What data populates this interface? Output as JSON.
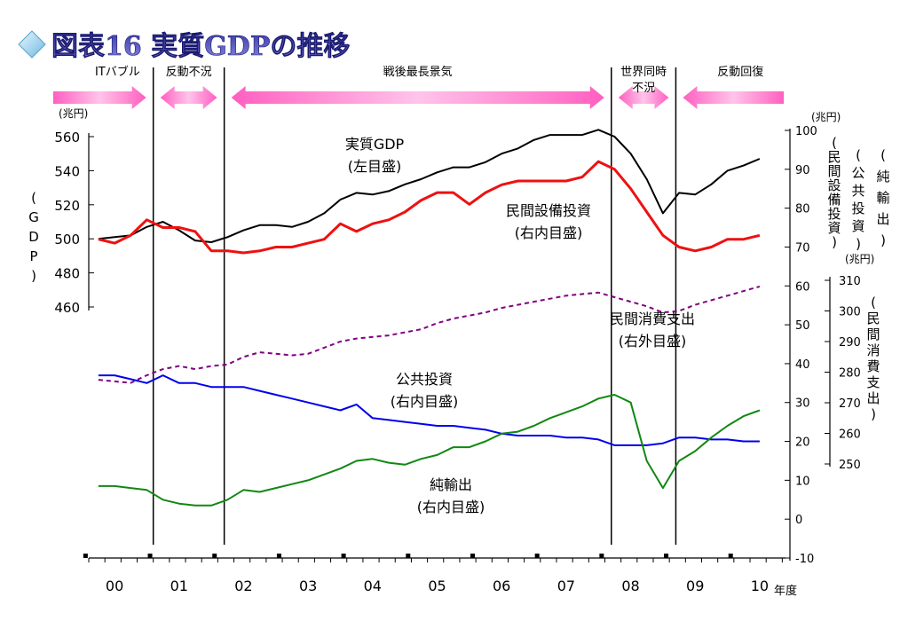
{
  "title": "図表16 実質GDPの推移",
  "x_unit": "年度",
  "left_axis": {
    "unit": "(兆円)",
    "label": [
      "(",
      "G",
      "D",
      "P",
      ")"
    ],
    "ticks": [
      460,
      480,
      500,
      520,
      540,
      560
    ]
  },
  "right_inner_axis": {
    "unit": "(兆円)",
    "ticks": [
      -10,
      0,
      10,
      20,
      30,
      40,
      50,
      60,
      70,
      80,
      90,
      100
    ]
  },
  "right_outer_axis": {
    "unit": "(兆円)",
    "ticks": [
      250,
      260,
      270,
      280,
      290,
      300,
      310
    ]
  },
  "vertical_axis_labels": [
    {
      "name": "net-exports-axis-label",
      "chars": [
        "(",
        "純",
        "輸",
        "出",
        ")"
      ]
    },
    {
      "name": "public-investment-axis-label",
      "chars": [
        "(",
        "公",
        "共",
        "投",
        "資",
        ")"
      ]
    },
    {
      "name": "capex-axis-label",
      "chars": [
        "(",
        "民",
        "間",
        "設",
        "備",
        "投",
        "資",
        ")"
      ]
    },
    {
      "name": "consumption-axis-label",
      "chars": [
        "(",
        "民",
        "間",
        "消",
        "費",
        "支",
        "出",
        ")"
      ]
    }
  ],
  "phases": [
    {
      "label": "ITバブル",
      "from": 2000.0,
      "to": 2000.6,
      "arrow": "right"
    },
    {
      "label": "反動不況",
      "from": 2000.6,
      "to": 2001.7,
      "arrow": "both"
    },
    {
      "label": "戦後最長景気",
      "from": 2001.7,
      "to": 2007.7,
      "arrow": "both"
    },
    {
      "label": "世界同時\n不況",
      "from": 2007.7,
      "to": 2008.7,
      "arrow": "both"
    },
    {
      "label": "反動回復",
      "from": 2008.7,
      "to": 2010.4,
      "arrow": "left"
    }
  ],
  "phase_boundaries": [
    2000.6,
    2001.7,
    2007.7,
    2008.7
  ],
  "series_labels": [
    {
      "text": "実質GDP",
      "sub": "(左目盛)"
    },
    {
      "text": "民間設備投資",
      "sub": "(右内目盛)"
    },
    {
      "text": "民間消費支出",
      "sub": "(右外目盛)"
    },
    {
      "text": "公共投資",
      "sub": "(右内目盛)"
    },
    {
      "text": "純輸出",
      "sub": "(右内目盛)"
    }
  ],
  "chart_data": {
    "type": "line",
    "x_ticks": [
      {
        "x": 2000,
        "label": "00"
      },
      {
        "x": 2001,
        "label": "01"
      },
      {
        "x": 2002,
        "label": "02"
      },
      {
        "x": 2003,
        "label": "03"
      },
      {
        "x": 2004,
        "label": "04"
      },
      {
        "x": 2005,
        "label": "05"
      },
      {
        "x": 2006,
        "label": "06"
      },
      {
        "x": 2007,
        "label": "07"
      },
      {
        "x": 2008,
        "label": "08"
      },
      {
        "x": 2009,
        "label": "09"
      },
      {
        "x": 2010,
        "label": "10"
      }
    ],
    "xlim": [
      1999.6,
      2010.4
    ],
    "x": [
      1999.75,
      2000.0,
      2000.25,
      2000.5,
      2000.75,
      2001.0,
      2001.25,
      2001.5,
      2001.75,
      2002.0,
      2002.25,
      2002.5,
      2002.75,
      2003.0,
      2003.25,
      2003.5,
      2003.75,
      2004.0,
      2004.25,
      2004.5,
      2004.75,
      2005.0,
      2005.25,
      2005.5,
      2005.75,
      2006.0,
      2006.25,
      2006.5,
      2006.75,
      2007.0,
      2007.25,
      2007.5,
      2007.75,
      2008.0,
      2008.25,
      2008.5,
      2008.75,
      2009.0,
      2009.25,
      2009.5,
      2009.75,
      2010.0
    ],
    "series": [
      {
        "name": "実質GDP",
        "axis": "left",
        "ylim": [
          440,
          565
        ],
        "color": "#000000",
        "dash": false,
        "values": [
          500,
          501,
          502,
          507,
          510,
          505,
          499,
          498,
          501,
          505,
          508,
          508,
          507,
          510,
          515,
          523,
          527,
          526,
          528,
          532,
          535,
          539,
          542,
          542,
          545,
          550,
          553,
          558,
          561,
          561,
          561,
          564,
          560,
          550,
          535,
          515,
          527,
          526,
          532,
          540,
          543,
          547
        ]
      },
      {
        "name": "民間設備投資",
        "axis": "right_inner",
        "ylim": [
          -10,
          100
        ],
        "color": "#ee1111",
        "dash": false,
        "values": [
          72,
          71,
          73,
          77,
          75,
          75,
          74,
          69,
          69,
          68.5,
          69,
          70,
          70,
          71,
          72,
          76,
          74,
          76,
          77,
          79,
          82,
          84,
          84,
          81,
          84,
          86,
          87,
          87,
          87,
          87,
          88,
          92,
          90,
          85,
          79,
          73,
          70,
          69,
          70,
          72,
          72,
          73
        ]
      },
      {
        "name": "民間消費支出",
        "axis": "right_outer",
        "ylim": [
          249,
          313
        ],
        "color": "#800080",
        "dash": true,
        "values": [
          277.5,
          277,
          276.5,
          279,
          281,
          282,
          281,
          282,
          282.5,
          285,
          286.5,
          286,
          285.5,
          286,
          288,
          290,
          291,
          291.5,
          292,
          293,
          294,
          296,
          297.5,
          298.5,
          299.5,
          301,
          302,
          303,
          304,
          305,
          305.5,
          306,
          304.5,
          303,
          301.5,
          299.5,
          300,
          302,
          303.5,
          305,
          306.5,
          308
        ]
      },
      {
        "name": "公共投資",
        "axis": "right_inner",
        "ylim": [
          -10,
          100
        ],
        "color": "#0000ee",
        "dash": false,
        "values": [
          37,
          37,
          36,
          35,
          37,
          35,
          35,
          34,
          34,
          34,
          33,
          32,
          31,
          30,
          29,
          28,
          29.5,
          26,
          25.5,
          25,
          24.5,
          24,
          24,
          23.5,
          23,
          22,
          21.5,
          21.5,
          21.5,
          21,
          21,
          20.5,
          19,
          19,
          19,
          19.5,
          21,
          21,
          20.5,
          20.5,
          20,
          20
        ]
      },
      {
        "name": "純輸出",
        "axis": "right_inner",
        "ylim": [
          -10,
          100
        ],
        "color": "#118811",
        "dash": false,
        "values": [
          8.5,
          8.5,
          8,
          7.5,
          5,
          4,
          3.5,
          3.5,
          5,
          7.5,
          7,
          8,
          9,
          10,
          11.5,
          13,
          15,
          15.5,
          14.5,
          14,
          15.5,
          16.5,
          18.5,
          18.5,
          20,
          22,
          22.5,
          24,
          26,
          27.5,
          29,
          31,
          32,
          30,
          15,
          8,
          15,
          17.5,
          21,
          24,
          26.5,
          28
        ]
      }
    ]
  }
}
